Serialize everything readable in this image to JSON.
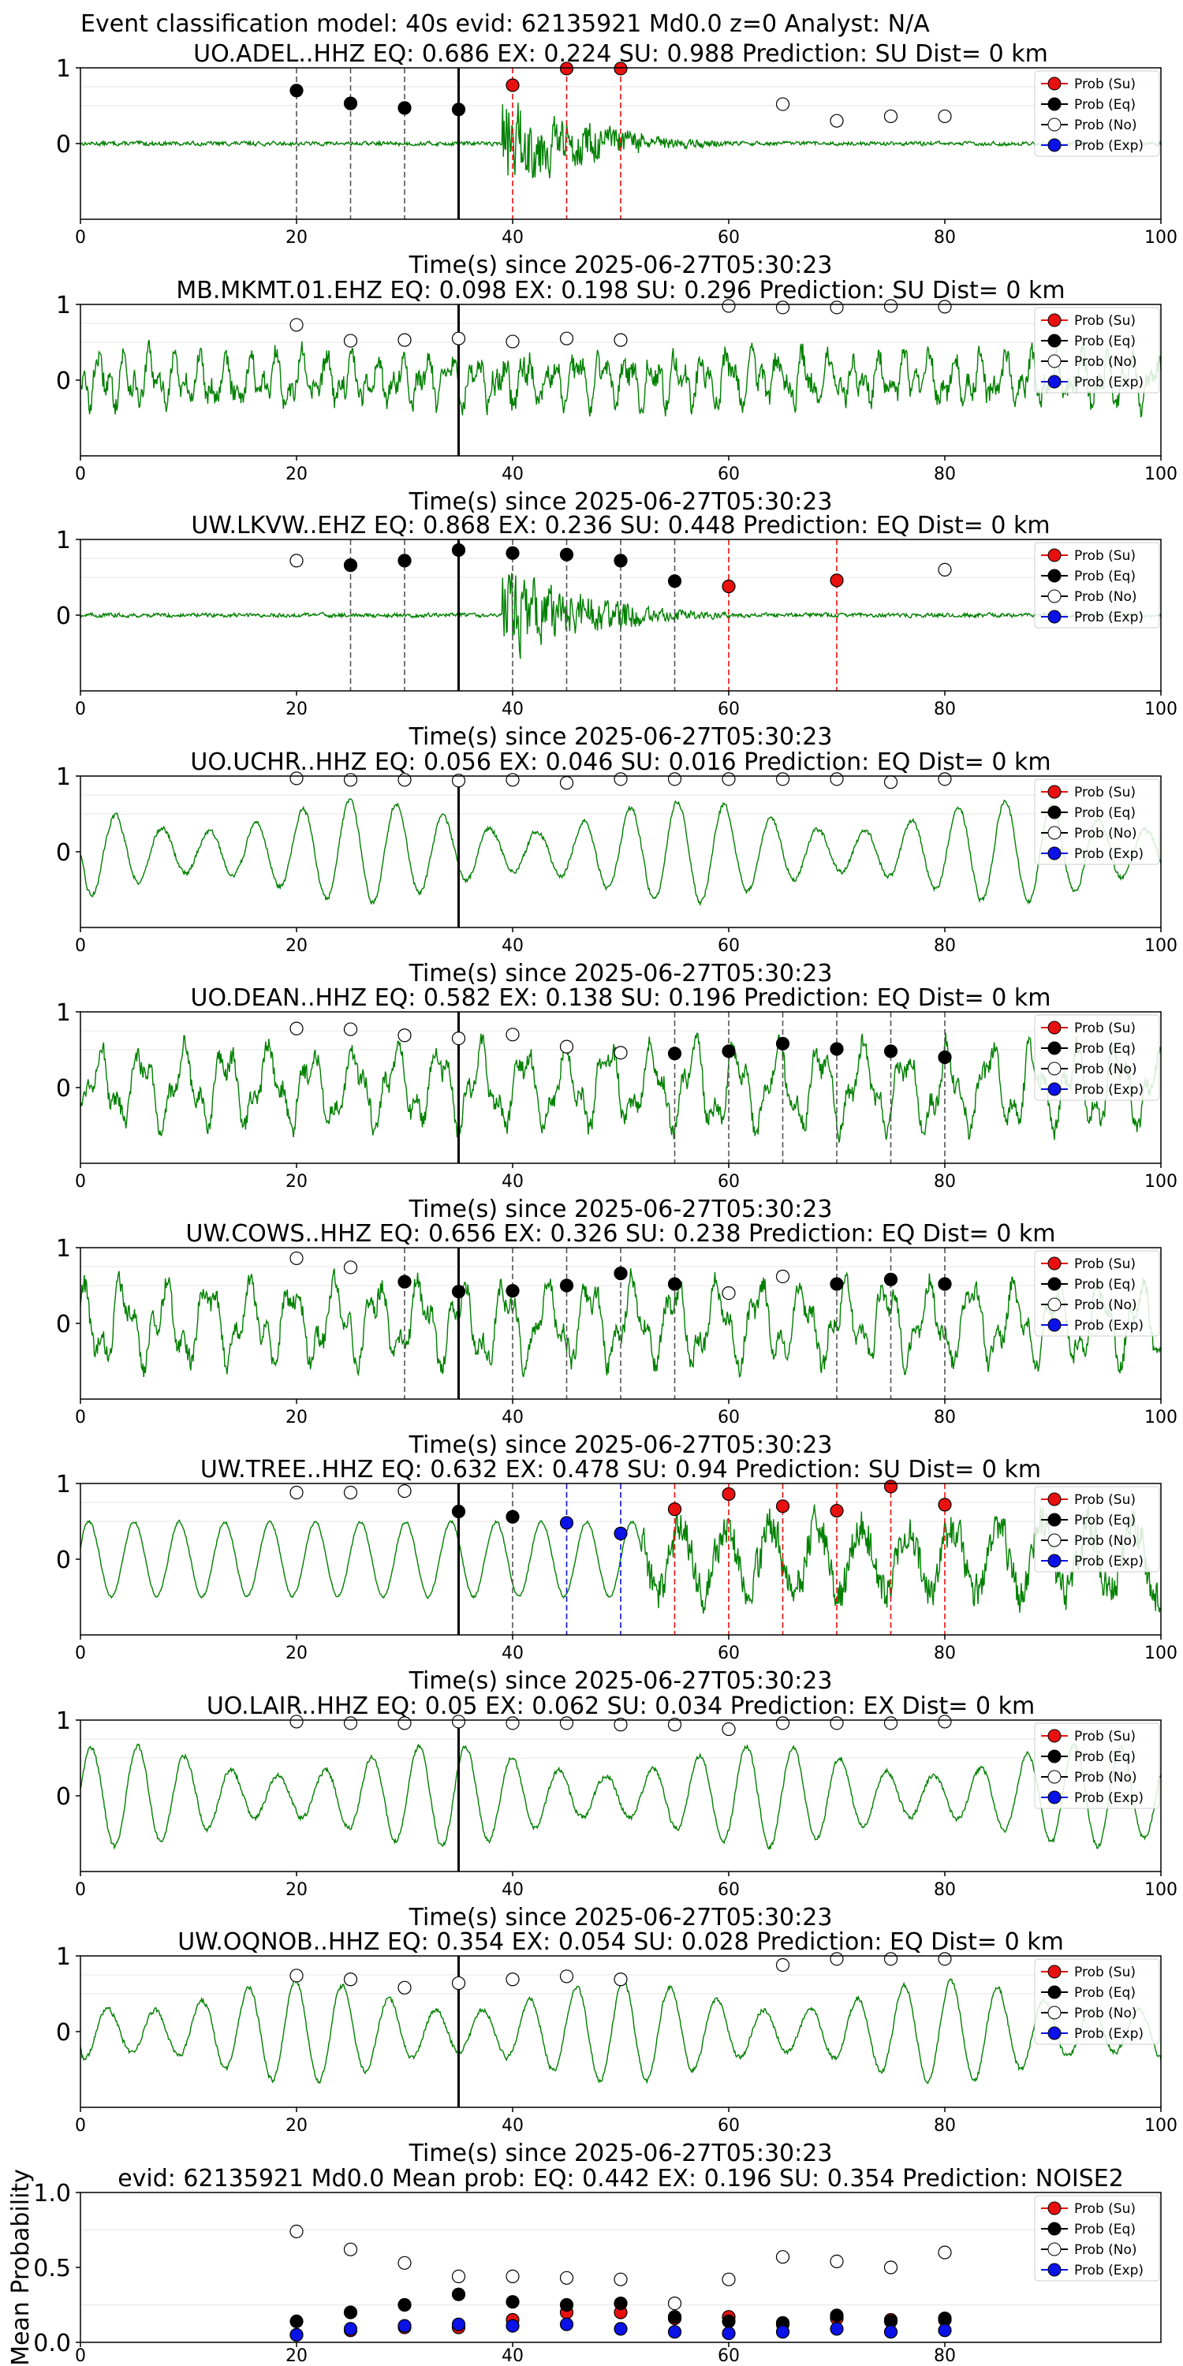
{
  "figure": {
    "suptitle": "Event classification model: 40s evid: 62135921 Md0.0 z=0 Analyst: N/A"
  },
  "legend_labels": [
    "Prob (Su)",
    "Prob (Eq)",
    "Prob (No)",
    "Prob (Exp)"
  ],
  "colors": {
    "su": "#e8110f",
    "eq": "#000000",
    "no": "#ffffff",
    "exp": "#0a12e8",
    "waveform": "#008000"
  },
  "chart_data": [
    {
      "type": "line",
      "title": "UO.ADEL..HHZ   EQ: 0.686  EX: 0.224  SU: 0.988   Prediction: SU    Dist= 0 km",
      "xlabel": "Time(s) since 2025-06-27T05:30:23",
      "xlim": [
        0,
        100
      ],
      "ylim": [
        -1,
        1
      ],
      "xticks": [
        "0",
        "20",
        "40",
        "60",
        "80",
        "100"
      ],
      "yticks": [
        "1",
        "0"
      ],
      "waveform": "burst",
      "pick_time": 35,
      "points": [
        {
          "t": 20,
          "p": 0.7,
          "class": "eq",
          "line": "eq"
        },
        {
          "t": 25,
          "p": 0.53,
          "class": "eq",
          "line": "eq"
        },
        {
          "t": 30,
          "p": 0.47,
          "class": "eq",
          "line": "eq"
        },
        {
          "t": 35,
          "p": 0.45,
          "class": "eq",
          "line": null
        },
        {
          "t": 40,
          "p": 0.77,
          "class": "su",
          "line": "su"
        },
        {
          "t": 45,
          "p": 0.99,
          "class": "su",
          "line": "su"
        },
        {
          "t": 50,
          "p": 0.99,
          "class": "su",
          "line": "su"
        },
        {
          "t": 65,
          "p": 0.52,
          "class": "no",
          "line": null
        },
        {
          "t": 70,
          "p": 0.3,
          "class": "no",
          "line": null
        },
        {
          "t": 75,
          "p": 0.36,
          "class": "no",
          "line": null
        },
        {
          "t": 80,
          "p": 0.36,
          "class": "no",
          "line": null
        }
      ]
    },
    {
      "type": "line",
      "title": "MB.MKMT.01.EHZ   EQ: 0.098  EX: 0.198  SU: 0.296   Prediction: SU    Dist= 0 km",
      "xlabel": "Time(s) since 2025-06-27T05:30:23",
      "xlim": [
        0,
        100
      ],
      "ylim": [
        -1,
        1
      ],
      "xticks": [
        "0",
        "20",
        "40",
        "60",
        "80",
        "100"
      ],
      "yticks": [
        "1",
        "0"
      ],
      "waveform": "noise",
      "pick_time": 35,
      "points": [
        {
          "t": 20,
          "p": 0.73,
          "class": "no",
          "line": null
        },
        {
          "t": 25,
          "p": 0.52,
          "class": "no",
          "line": null
        },
        {
          "t": 30,
          "p": 0.53,
          "class": "no",
          "line": null
        },
        {
          "t": 35,
          "p": 0.55,
          "class": "no",
          "line": null
        },
        {
          "t": 40,
          "p": 0.51,
          "class": "no",
          "line": null
        },
        {
          "t": 45,
          "p": 0.55,
          "class": "no",
          "line": null
        },
        {
          "t": 50,
          "p": 0.53,
          "class": "no",
          "line": null
        },
        {
          "t": 60,
          "p": 0.98,
          "class": "no",
          "line": null
        },
        {
          "t": 65,
          "p": 0.96,
          "class": "no",
          "line": null
        },
        {
          "t": 70,
          "p": 0.96,
          "class": "no",
          "line": null
        },
        {
          "t": 75,
          "p": 0.98,
          "class": "no",
          "line": null
        },
        {
          "t": 80,
          "p": 0.97,
          "class": "no",
          "line": null
        }
      ]
    },
    {
      "type": "line",
      "title": "UW.LKVW..EHZ   EQ: 0.868  EX: 0.236  SU: 0.448   Prediction: EQ    Dist= 0 km",
      "xlabel": "Time(s) since 2025-06-27T05:30:23",
      "xlim": [
        0,
        100
      ],
      "ylim": [
        -1,
        1
      ],
      "xticks": [
        "0",
        "20",
        "40",
        "60",
        "80",
        "100"
      ],
      "yticks": [
        "1",
        "0"
      ],
      "waveform": "burst",
      "pick_time": 35,
      "points": [
        {
          "t": 20,
          "p": 0.72,
          "class": "no",
          "line": null
        },
        {
          "t": 25,
          "p": 0.66,
          "class": "eq",
          "line": "eq"
        },
        {
          "t": 30,
          "p": 0.72,
          "class": "eq",
          "line": "eq"
        },
        {
          "t": 35,
          "p": 0.86,
          "class": "eq",
          "line": null
        },
        {
          "t": 40,
          "p": 0.82,
          "class": "eq",
          "line": "eq"
        },
        {
          "t": 45,
          "p": 0.8,
          "class": "eq",
          "line": "eq"
        },
        {
          "t": 50,
          "p": 0.72,
          "class": "eq",
          "line": "eq"
        },
        {
          "t": 55,
          "p": 0.45,
          "class": "eq",
          "line": "eq"
        },
        {
          "t": 60,
          "p": 0.38,
          "class": "su",
          "line": "su"
        },
        {
          "t": 70,
          "p": 0.46,
          "class": "su",
          "line": "su"
        },
        {
          "t": 80,
          "p": 0.6,
          "class": "no",
          "line": null
        }
      ]
    },
    {
      "type": "line",
      "title": "UO.UCHR..HHZ   EQ: 0.056  EX: 0.046  SU: 0.016   Prediction: EQ    Dist= 0 km",
      "xlabel": "Time(s) since 2025-06-27T05:30:23",
      "xlim": [
        0,
        100
      ],
      "ylim": [
        -1,
        1
      ],
      "xticks": [
        "0",
        "20",
        "40",
        "60",
        "80",
        "100"
      ],
      "yticks": [
        "1",
        "0"
      ],
      "waveform": "sinus",
      "pick_time": 35,
      "points": [
        {
          "t": 20,
          "p": 0.97,
          "class": "no",
          "line": null
        },
        {
          "t": 25,
          "p": 0.95,
          "class": "no",
          "line": null
        },
        {
          "t": 30,
          "p": 0.95,
          "class": "no",
          "line": null
        },
        {
          "t": 35,
          "p": 0.94,
          "class": "no",
          "line": null
        },
        {
          "t": 40,
          "p": 0.95,
          "class": "no",
          "line": null
        },
        {
          "t": 45,
          "p": 0.91,
          "class": "no",
          "line": null
        },
        {
          "t": 50,
          "p": 0.96,
          "class": "no",
          "line": null
        },
        {
          "t": 55,
          "p": 0.96,
          "class": "no",
          "line": null
        },
        {
          "t": 60,
          "p": 0.96,
          "class": "no",
          "line": null
        },
        {
          "t": 65,
          "p": 0.96,
          "class": "no",
          "line": null
        },
        {
          "t": 70,
          "p": 0.96,
          "class": "no",
          "line": null
        },
        {
          "t": 75,
          "p": 0.92,
          "class": "no",
          "line": null
        },
        {
          "t": 80,
          "p": 0.96,
          "class": "no",
          "line": null
        }
      ]
    },
    {
      "type": "line",
      "title": "UO.DEAN..HHZ   EQ: 0.582  EX: 0.138  SU: 0.196   Prediction: EQ    Dist= 0 km",
      "xlabel": "Time(s) since 2025-06-27T05:30:23",
      "xlim": [
        0,
        100
      ],
      "ylim": [
        -1,
        1
      ],
      "xticks": [
        "0",
        "20",
        "40",
        "60",
        "80",
        "100"
      ],
      "yticks": [
        "1",
        "0"
      ],
      "waveform": "mixed",
      "pick_time": 35,
      "points": [
        {
          "t": 20,
          "p": 0.78,
          "class": "no",
          "line": null
        },
        {
          "t": 25,
          "p": 0.77,
          "class": "no",
          "line": null
        },
        {
          "t": 30,
          "p": 0.69,
          "class": "no",
          "line": null
        },
        {
          "t": 35,
          "p": 0.65,
          "class": "no",
          "line": null
        },
        {
          "t": 40,
          "p": 0.7,
          "class": "no",
          "line": null
        },
        {
          "t": 45,
          "p": 0.54,
          "class": "no",
          "line": null
        },
        {
          "t": 50,
          "p": 0.46,
          "class": "no",
          "line": null
        },
        {
          "t": 55,
          "p": 0.45,
          "class": "eq",
          "line": "eq"
        },
        {
          "t": 60,
          "p": 0.48,
          "class": "eq",
          "line": "eq"
        },
        {
          "t": 65,
          "p": 0.58,
          "class": "eq",
          "line": "eq"
        },
        {
          "t": 70,
          "p": 0.51,
          "class": "eq",
          "line": "eq"
        },
        {
          "t": 75,
          "p": 0.48,
          "class": "eq",
          "line": "eq"
        },
        {
          "t": 80,
          "p": 0.4,
          "class": "eq",
          "line": "eq"
        }
      ]
    },
    {
      "type": "line",
      "title": "UW.COWS..HHZ   EQ: 0.656  EX: 0.326  SU: 0.238   Prediction: EQ    Dist= 0 km",
      "xlabel": "Time(s) since 2025-06-27T05:30:23",
      "xlim": [
        0,
        100
      ],
      "ylim": [
        -1,
        1
      ],
      "xticks": [
        "0",
        "20",
        "40",
        "60",
        "80",
        "100"
      ],
      "yticks": [
        "1",
        "0"
      ],
      "waveform": "mixed",
      "pick_time": 35,
      "points": [
        {
          "t": 20,
          "p": 0.86,
          "class": "no",
          "line": null
        },
        {
          "t": 25,
          "p": 0.74,
          "class": "no",
          "line": null
        },
        {
          "t": 30,
          "p": 0.55,
          "class": "eq",
          "line": "eq"
        },
        {
          "t": 35,
          "p": 0.42,
          "class": "eq",
          "line": null
        },
        {
          "t": 40,
          "p": 0.43,
          "class": "eq",
          "line": "eq"
        },
        {
          "t": 45,
          "p": 0.5,
          "class": "eq",
          "line": "eq"
        },
        {
          "t": 50,
          "p": 0.66,
          "class": "eq",
          "line": "eq"
        },
        {
          "t": 55,
          "p": 0.52,
          "class": "eq",
          "line": "eq"
        },
        {
          "t": 60,
          "p": 0.4,
          "class": "no",
          "line": null
        },
        {
          "t": 65,
          "p": 0.62,
          "class": "no",
          "line": null
        },
        {
          "t": 70,
          "p": 0.52,
          "class": "eq",
          "line": "eq"
        },
        {
          "t": 75,
          "p": 0.58,
          "class": "eq",
          "line": "eq"
        },
        {
          "t": 80,
          "p": 0.52,
          "class": "eq",
          "line": "eq"
        }
      ]
    },
    {
      "type": "line",
      "title": "UW.TREE..HHZ   EQ: 0.632  EX: 0.478  SU: 0.94   Prediction: SU    Dist= 0 km",
      "xlabel": "Time(s) since 2025-06-27T05:30:23",
      "xlim": [
        0,
        100
      ],
      "ylim": [
        -1,
        1
      ],
      "xticks": [
        "0",
        "20",
        "40",
        "60",
        "80",
        "100"
      ],
      "yticks": [
        "1",
        "0"
      ],
      "waveform": "tree",
      "pick_time": 35,
      "points": [
        {
          "t": 20,
          "p": 0.88,
          "class": "no",
          "line": null
        },
        {
          "t": 25,
          "p": 0.88,
          "class": "no",
          "line": null
        },
        {
          "t": 30,
          "p": 0.9,
          "class": "no",
          "line": null
        },
        {
          "t": 35,
          "p": 0.63,
          "class": "eq",
          "line": null
        },
        {
          "t": 40,
          "p": 0.56,
          "class": "eq",
          "line": "eq"
        },
        {
          "t": 45,
          "p": 0.48,
          "class": "exp",
          "line": "exp"
        },
        {
          "t": 50,
          "p": 0.34,
          "class": "exp",
          "line": "exp"
        },
        {
          "t": 55,
          "p": 0.66,
          "class": "su",
          "line": "su"
        },
        {
          "t": 60,
          "p": 0.86,
          "class": "su",
          "line": "su"
        },
        {
          "t": 65,
          "p": 0.7,
          "class": "su",
          "line": "su"
        },
        {
          "t": 70,
          "p": 0.64,
          "class": "su",
          "line": "su"
        },
        {
          "t": 75,
          "p": 0.96,
          "class": "su",
          "line": "su"
        },
        {
          "t": 80,
          "p": 0.72,
          "class": "su",
          "line": "su"
        }
      ]
    },
    {
      "type": "line",
      "title": "UO.LAIR..HHZ   EQ: 0.05  EX: 0.062  SU: 0.034   Prediction: EX    Dist= 0 km",
      "xlabel": "Time(s) since 2025-06-27T05:30:23",
      "xlim": [
        0,
        100
      ],
      "ylim": [
        -1,
        1
      ],
      "xticks": [
        "0",
        "20",
        "40",
        "60",
        "80",
        "100"
      ],
      "yticks": [
        "1",
        "0"
      ],
      "waveform": "sinus",
      "pick_time": 35,
      "points": [
        {
          "t": 20,
          "p": 0.98,
          "class": "no",
          "line": null
        },
        {
          "t": 25,
          "p": 0.96,
          "class": "no",
          "line": null
        },
        {
          "t": 30,
          "p": 0.96,
          "class": "no",
          "line": null
        },
        {
          "t": 35,
          "p": 0.98,
          "class": "no",
          "line": null
        },
        {
          "t": 40,
          "p": 0.96,
          "class": "no",
          "line": null
        },
        {
          "t": 45,
          "p": 0.96,
          "class": "no",
          "line": null
        },
        {
          "t": 50,
          "p": 0.94,
          "class": "no",
          "line": null
        },
        {
          "t": 55,
          "p": 0.94,
          "class": "no",
          "line": null
        },
        {
          "t": 60,
          "p": 0.88,
          "class": "no",
          "line": null
        },
        {
          "t": 65,
          "p": 0.96,
          "class": "no",
          "line": null
        },
        {
          "t": 70,
          "p": 0.96,
          "class": "no",
          "line": null
        },
        {
          "t": 75,
          "p": 0.96,
          "class": "no",
          "line": null
        },
        {
          "t": 80,
          "p": 0.98,
          "class": "no",
          "line": null
        }
      ]
    },
    {
      "type": "line",
      "title": "UW.OQNOB..HHZ   EQ: 0.354  EX: 0.054  SU: 0.028   Prediction: EQ    Dist= 0 km",
      "xlabel": "Time(s) since 2025-06-27T05:30:23",
      "xlim": [
        0,
        100
      ],
      "ylim": [
        -1,
        1
      ],
      "xticks": [
        "0",
        "20",
        "40",
        "60",
        "80",
        "100"
      ],
      "yticks": [
        "1",
        "0"
      ],
      "waveform": "sinus",
      "pick_time": 35,
      "points": [
        {
          "t": 20,
          "p": 0.74,
          "class": "no",
          "line": null
        },
        {
          "t": 25,
          "p": 0.69,
          "class": "no",
          "line": null
        },
        {
          "t": 30,
          "p": 0.58,
          "class": "no",
          "line": null
        },
        {
          "t": 35,
          "p": 0.64,
          "class": "no",
          "line": null
        },
        {
          "t": 40,
          "p": 0.69,
          "class": "no",
          "line": null
        },
        {
          "t": 45,
          "p": 0.73,
          "class": "no",
          "line": null
        },
        {
          "t": 50,
          "p": 0.69,
          "class": "no",
          "line": null
        },
        {
          "t": 65,
          "p": 0.88,
          "class": "no",
          "line": null
        },
        {
          "t": 70,
          "p": 0.96,
          "class": "no",
          "line": null
        },
        {
          "t": 75,
          "p": 0.96,
          "class": "no",
          "line": null
        },
        {
          "t": 80,
          "p": 0.96,
          "class": "no",
          "line": null
        }
      ]
    },
    {
      "type": "scatter",
      "title": "evid: 62135921  Md0.0   Mean prob:    EQ: 0.442  EX: 0.196  SU: 0.354   Prediction: NOISE2",
      "xlabel": "",
      "ylabel": "Mean Probability",
      "xlim": [
        0,
        100
      ],
      "ylim": [
        0,
        1
      ],
      "xticks": [
        "0",
        "20",
        "40",
        "60",
        "80"
      ],
      "yticks": [
        "1.0",
        "0.5",
        "0.0"
      ],
      "x": [
        20,
        25,
        30,
        35,
        40,
        45,
        50,
        55,
        60,
        65,
        70,
        75,
        80
      ],
      "series": [
        {
          "name": "Prob (Su)",
          "class": "su",
          "values": [
            0.05,
            0.08,
            0.1,
            0.1,
            0.15,
            0.2,
            0.2,
            0.16,
            0.17,
            0.12,
            0.16,
            0.15,
            0.15
          ]
        },
        {
          "name": "Prob (Eq)",
          "class": "eq",
          "values": [
            0.14,
            0.2,
            0.25,
            0.32,
            0.27,
            0.25,
            0.26,
            0.17,
            0.14,
            0.13,
            0.18,
            0.14,
            0.16
          ]
        },
        {
          "name": "Prob (No)",
          "class": "no",
          "values": [
            0.74,
            0.62,
            0.53,
            0.44,
            0.44,
            0.43,
            0.42,
            0.26,
            0.42,
            0.57,
            0.54,
            0.5,
            0.6
          ]
        },
        {
          "name": "Prob (Exp)",
          "class": "exp",
          "values": [
            0.05,
            0.09,
            0.11,
            0.12,
            0.11,
            0.12,
            0.09,
            0.07,
            0.06,
            0.07,
            0.09,
            0.07,
            0.08
          ]
        }
      ]
    }
  ]
}
